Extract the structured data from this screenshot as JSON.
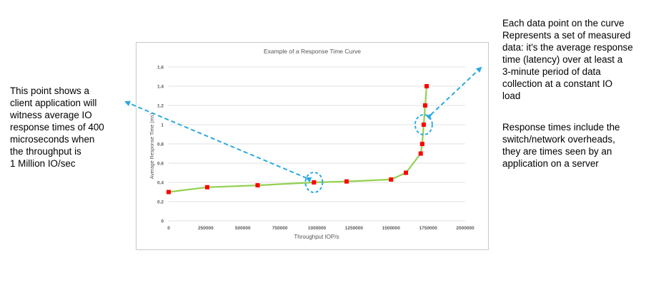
{
  "annotations": {
    "left_text": "This point shows a\nclient application will\nwitness average IO\nresponse times of 400\nmicroseconds when\nthe throughput is\n1 Million IO/sec",
    "right_text_1": "Each data point on the curve\nRepresents a set of measured\ndata: it's the average response\ntime (latency) over at least a\n3-minute period of data\ncollection at a constant IO\nload",
    "right_text_2": "Response times include the\nswitch/network overheads,\nthey are times seen by an\napplication on a server",
    "arrow_color": "#29a9e0"
  },
  "chart_data": {
    "type": "line",
    "title": "Example of a Response Time Curve",
    "xlabel": "Throughput IOP/s",
    "ylabel": "Average Response Time (ms)",
    "xlim": [
      0,
      2000000
    ],
    "ylim": [
      0,
      1.6
    ],
    "x_ticks": [
      0,
      250000,
      500000,
      750000,
      1000000,
      1250000,
      1500000,
      1750000,
      2000000
    ],
    "y_ticks": [
      0,
      0.2,
      0.4,
      0.6,
      0.8,
      1,
      1.2,
      1.4,
      1.6
    ],
    "grid": "horizontal",
    "line_color": "#92d050",
    "marker_color": "#ff0000",
    "series": [
      {
        "x": [
          0,
          260000,
          600000,
          980000,
          1200000,
          1500000,
          1600000,
          1700000,
          1710000,
          1720000,
          1730000,
          1740000
        ],
        "y": [
          0.3,
          0.35,
          0.37,
          0.4,
          0.41,
          0.43,
          0.5,
          0.7,
          0.8,
          1.0,
          1.2,
          1.4
        ]
      }
    ],
    "highlights": [
      {
        "x": 980000,
        "y": 0.4
      },
      {
        "x": 1720000,
        "y": 1.0
      }
    ]
  }
}
